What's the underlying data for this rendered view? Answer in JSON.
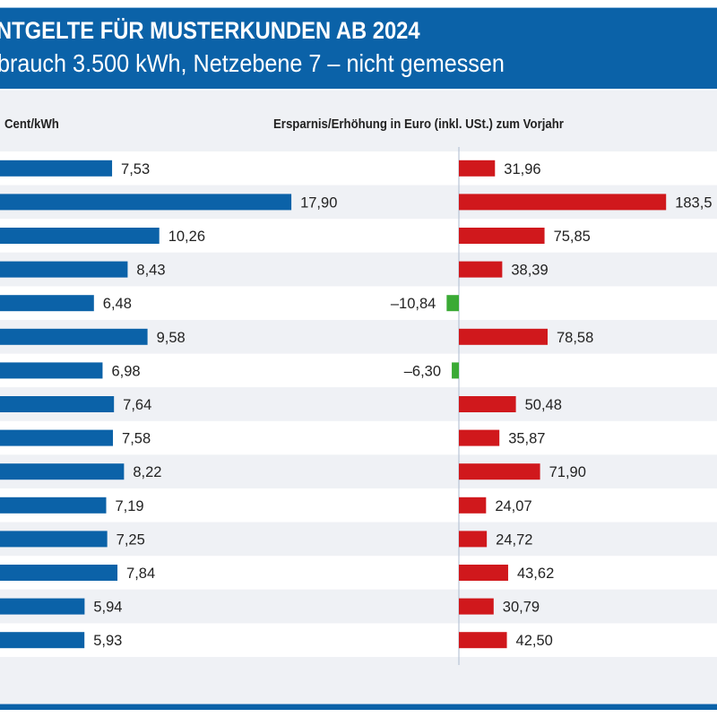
{
  "header": {
    "title": "NTGELTE FÜR MUSTERKUNDEN AB 2024",
    "subtitle": "brauch 3.500 kWh, Netzebene 7 – nicht gemessen"
  },
  "colors": {
    "left_bars": "#0b62a8",
    "increase": "#d0181c",
    "decrease": "#3aaa35",
    "header_band": "#0b62a8"
  },
  "chart_data": [
    {
      "type": "bar",
      "orientation": "horizontal",
      "title": "Cent/kWh",
      "values": [
        7.53,
        17.9,
        10.26,
        8.43,
        6.48,
        9.58,
        6.98,
        7.64,
        7.58,
        8.22,
        7.19,
        7.25,
        7.84,
        5.94,
        5.93
      ],
      "labels": [
        "7,53",
        "17,90",
        "10,26",
        "8,43",
        "6,48",
        "9,58",
        "6,98",
        "7,64",
        "7,58",
        "8,22",
        "7,19",
        "7,25",
        "7,84",
        "5,94",
        "5,93"
      ]
    },
    {
      "type": "bar",
      "orientation": "horizontal",
      "title": "Ersparnis/Erhöhung in Euro (inkl. USt.) zum Vorjahr",
      "values": [
        31.96,
        183.5,
        75.85,
        38.39,
        -10.84,
        78.58,
        -6.3,
        50.48,
        35.87,
        71.9,
        24.07,
        24.72,
        43.62,
        30.79,
        42.5
      ],
      "labels": [
        "31,96",
        "183,5",
        "75,85",
        "38,39",
        "–10,84",
        "78,58",
        "–6,30",
        "50,48",
        "35,87",
        "71,90",
        "24,07",
        "24,72",
        "43,62",
        "30,79",
        "42,50"
      ]
    }
  ]
}
